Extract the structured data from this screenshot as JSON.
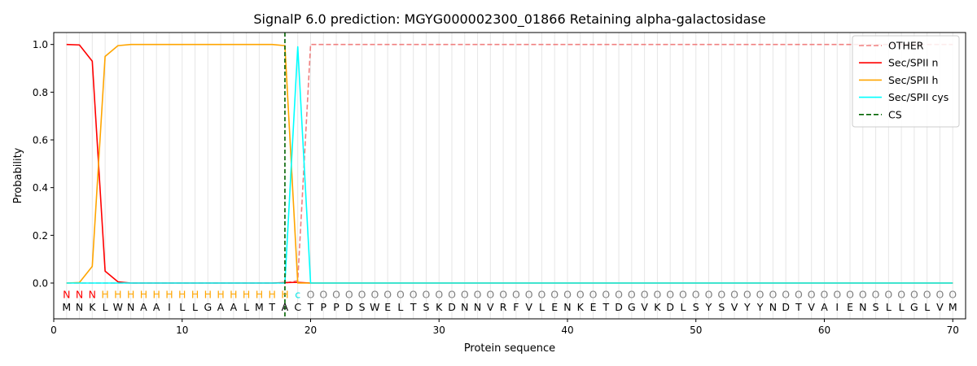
{
  "chart_data": {
    "type": "line",
    "title": "SignalP 6.0 prediction: MGYG000002300_01866 Retaining alpha-galactosidase",
    "xlabel": "Protein sequence",
    "ylabel": "Probability",
    "xlim": [
      0,
      71
    ],
    "ylim": [
      -0.15,
      1.05
    ],
    "x_ticks": [
      0,
      10,
      20,
      30,
      40,
      50,
      60,
      70
    ],
    "y_ticks": [
      0.0,
      0.2,
      0.4,
      0.6,
      0.8,
      1.0
    ],
    "y_tick_labels": [
      "0.0",
      "0.2",
      "0.4",
      "0.6",
      "0.8",
      "1.0"
    ],
    "grid": "vertical lines at each residue",
    "legend_position": "top-right",
    "sequence": "MNKLWNAAILLGAALMTACTPPDSWELTSKDNNVRFVLENKETDGVKDLSYSVYYNDTVAIENSLLGLVM",
    "labels": "NNNHHHHHHHHHHHHHHHcOOOOOOOOOOOOOOOOOOOOOOOOOOOOOOOOOOOOOOOOOOOOOOOOOOO",
    "label_colors": {
      "N": "#ff0000",
      "H": "#ffa500",
      "c": "#00e5e5",
      "O": "#808080"
    },
    "cleavage_site": 18,
    "series": [
      {
        "name": "OTHER",
        "color": "#f08080",
        "dash": "dashed",
        "values": [
          0,
          0,
          0,
          0,
          0,
          0,
          0,
          0,
          0,
          0,
          0,
          0,
          0,
          0,
          0,
          0,
          0,
          0,
          0.01,
          1,
          1,
          1,
          1,
          1,
          1,
          1,
          1,
          1,
          1,
          1,
          1,
          1,
          1,
          1,
          1,
          1,
          1,
          1,
          1,
          1,
          1,
          1,
          1,
          1,
          1,
          1,
          1,
          1,
          1,
          1,
          1,
          1,
          1,
          1,
          1,
          1,
          1,
          1,
          1,
          1,
          1,
          1,
          1,
          1,
          1,
          1,
          1,
          1,
          1,
          1
        ]
      },
      {
        "name": "Sec/SPII n",
        "color": "#ff0000",
        "dash": "solid",
        "values": [
          1.0,
          0.998,
          0.93,
          0.05,
          0.005,
          0,
          0,
          0,
          0,
          0,
          0,
          0,
          0,
          0,
          0,
          0,
          0,
          0.002,
          0.003,
          0,
          0,
          0,
          0,
          0,
          0,
          0,
          0,
          0,
          0,
          0,
          0,
          0,
          0,
          0,
          0,
          0,
          0,
          0,
          0,
          0,
          0,
          0,
          0,
          0,
          0,
          0,
          0,
          0,
          0,
          0,
          0,
          0,
          0,
          0,
          0,
          0,
          0,
          0,
          0,
          0,
          0,
          0,
          0,
          0,
          0,
          0,
          0,
          0,
          0,
          0
        ]
      },
      {
        "name": "Sec/SPII h",
        "color": "#ffa500",
        "dash": "solid",
        "values": [
          0,
          0.002,
          0.07,
          0.95,
          0.995,
          1.0,
          1.0,
          1.0,
          1.0,
          1.0,
          1.0,
          1.0,
          1.0,
          1.0,
          1.0,
          1.0,
          1.0,
          0.995,
          0,
          0,
          0,
          0,
          0,
          0,
          0,
          0,
          0,
          0,
          0,
          0,
          0,
          0,
          0,
          0,
          0,
          0,
          0,
          0,
          0,
          0,
          0,
          0,
          0,
          0,
          0,
          0,
          0,
          0,
          0,
          0,
          0,
          0,
          0,
          0,
          0,
          0,
          0,
          0,
          0,
          0,
          0,
          0,
          0,
          0,
          0,
          0,
          0,
          0,
          0,
          0
        ]
      },
      {
        "name": "Sec/SPII cys",
        "color": "#00ffff",
        "dash": "solid",
        "values": [
          0,
          0,
          0,
          0,
          0,
          0,
          0,
          0,
          0,
          0,
          0,
          0,
          0,
          0,
          0,
          0,
          0,
          0,
          0.99,
          0,
          0,
          0,
          0,
          0,
          0,
          0,
          0,
          0,
          0,
          0,
          0,
          0,
          0,
          0,
          0,
          0,
          0,
          0,
          0,
          0,
          0,
          0,
          0,
          0,
          0,
          0,
          0,
          0,
          0,
          0,
          0,
          0,
          0,
          0,
          0,
          0,
          0,
          0,
          0,
          0,
          0,
          0,
          0,
          0,
          0,
          0,
          0,
          0,
          0,
          0
        ]
      },
      {
        "name": "CS",
        "color": "#006400",
        "dash": "dashed",
        "values": []
      }
    ]
  }
}
